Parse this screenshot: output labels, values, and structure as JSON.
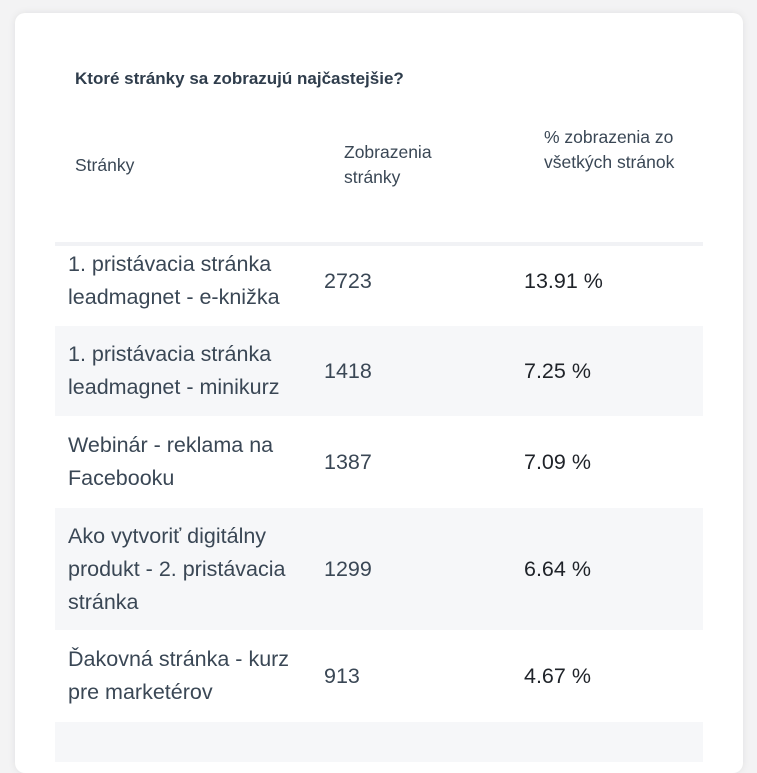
{
  "title": "Ktoré stránky sa zobrazujú najčastejšie?",
  "columns": [
    "Stránky",
    "Zobrazenia stránky",
    "% zobrazenia zo všetkých stránok"
  ],
  "rows": [
    {
      "page": "1. pristávacia stránka leadmagnet - e-knižka",
      "views": "2723",
      "percent": "13.91 %"
    },
    {
      "page": "1. pristávacia stránka leadmagnet - minikurz",
      "views": "1418",
      "percent": "7.25 %"
    },
    {
      "page": "Webinár - reklama na Facebooku",
      "views": "1387",
      "percent": "7.09 %"
    },
    {
      "page": "Ako vytvoriť digitálny produkt - 2. pristávacia stránka",
      "views": "1299",
      "percent": "6.64 %"
    },
    {
      "page": "Ďakovná stránka - kurz pre marketérov",
      "views": "913",
      "percent": "4.67 %"
    }
  ]
}
